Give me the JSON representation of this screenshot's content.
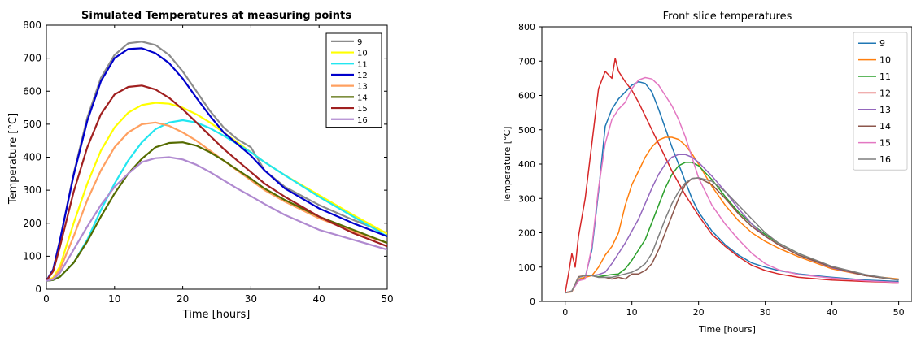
{
  "chart_data": [
    {
      "type": "line",
      "title": "Simulated Temperatures at measuring points",
      "xlabel": "Time [hours]",
      "ylabel": "Temperature [°C]",
      "xlim": [
        0,
        50
      ],
      "ylim": [
        0,
        800
      ],
      "xticks": [
        0,
        10,
        20,
        30,
        40,
        50
      ],
      "yticks": [
        0,
        100,
        200,
        300,
        400,
        500,
        600,
        700,
        800
      ],
      "grid": false,
      "legend_position": "top-right",
      "series": [
        {
          "name": "9",
          "color": "#8c8c8c",
          "x": [
            0,
            1,
            2,
            4,
            6,
            8,
            10,
            12,
            14,
            16,
            18,
            20,
            22,
            24,
            26,
            28,
            30,
            32,
            35,
            40,
            45,
            50
          ],
          "y": [
            25,
            60,
            150,
            350,
            520,
            640,
            710,
            745,
            750,
            740,
            710,
            660,
            600,
            540,
            490,
            455,
            430,
            360,
            310,
            255,
            210,
            170
          ]
        },
        {
          "name": "10",
          "color": "#ffff00",
          "x": [
            0,
            1,
            2,
            4,
            6,
            8,
            10,
            12,
            14,
            16,
            18,
            20,
            22,
            24,
            26,
            28,
            30,
            32,
            35,
            40,
            45,
            50
          ],
          "y": [
            25,
            35,
            70,
            200,
            320,
            420,
            490,
            535,
            558,
            565,
            562,
            550,
            530,
            505,
            475,
            445,
            415,
            385,
            345,
            285,
            225,
            168
          ]
        },
        {
          "name": "11",
          "color": "#22e6f0",
          "x": [
            0,
            1,
            2,
            4,
            6,
            8,
            10,
            12,
            14,
            16,
            18,
            20,
            22,
            24,
            26,
            28,
            30,
            32,
            35,
            40,
            45,
            50
          ],
          "y": [
            25,
            28,
            38,
            80,
            150,
            240,
            320,
            390,
            445,
            485,
            505,
            512,
            505,
            488,
            465,
            440,
            415,
            385,
            345,
            280,
            220,
            160
          ]
        },
        {
          "name": "12",
          "color": "#0000cc",
          "x": [
            0,
            1,
            2,
            4,
            6,
            8,
            10,
            12,
            14,
            16,
            18,
            20,
            22,
            24,
            26,
            28,
            30,
            32,
            35,
            40,
            45,
            50
          ],
          "y": [
            25,
            60,
            150,
            345,
            510,
            630,
            700,
            728,
            730,
            715,
            685,
            638,
            580,
            525,
            475,
            440,
            405,
            360,
            305,
            245,
            200,
            160
          ]
        },
        {
          "name": "13",
          "color": "#ffa060",
          "x": [
            0,
            1,
            2,
            4,
            6,
            8,
            10,
            12,
            14,
            16,
            18,
            20,
            22,
            24,
            26,
            28,
            30,
            32,
            35,
            40,
            45,
            50
          ],
          "y": [
            25,
            32,
            60,
            160,
            270,
            360,
            430,
            475,
            500,
            505,
            495,
            475,
            450,
            420,
            390,
            360,
            330,
            300,
            265,
            215,
            175,
            140
          ]
        },
        {
          "name": "14",
          "color": "#556b00",
          "x": [
            0,
            1,
            2,
            4,
            6,
            8,
            10,
            12,
            14,
            16,
            18,
            20,
            22,
            24,
            26,
            28,
            30,
            32,
            35,
            40,
            45,
            50
          ],
          "y": [
            25,
            28,
            38,
            80,
            145,
            220,
            290,
            350,
            395,
            430,
            443,
            445,
            435,
            415,
            390,
            362,
            335,
            305,
            270,
            220,
            180,
            140
          ]
        },
        {
          "name": "15",
          "color": "#a02020",
          "x": [
            0,
            1,
            2,
            4,
            6,
            8,
            10,
            12,
            14,
            16,
            18,
            20,
            22,
            24,
            26,
            28,
            30,
            32,
            35,
            40,
            45,
            50
          ],
          "y": [
            25,
            55,
            130,
            295,
            430,
            530,
            590,
            613,
            617,
            605,
            580,
            545,
            505,
            465,
            425,
            390,
            355,
            320,
            280,
            220,
            170,
            130
          ]
        },
        {
          "name": "16",
          "color": "#b08ad0",
          "x": [
            0,
            1,
            2,
            4,
            6,
            8,
            10,
            12,
            14,
            16,
            18,
            20,
            22,
            24,
            26,
            28,
            30,
            32,
            35,
            40,
            45,
            50
          ],
          "y": [
            25,
            30,
            50,
            120,
            190,
            255,
            310,
            350,
            385,
            397,
            400,
            393,
            377,
            355,
            330,
            305,
            282,
            258,
            225,
            180,
            150,
            120
          ]
        }
      ]
    },
    {
      "type": "line",
      "title": "Front slice temperatures",
      "xlabel": "Time [hours]",
      "ylabel": "Temperature [°C]",
      "xlim": [
        -3.5,
        52
      ],
      "ylim": [
        0,
        800
      ],
      "xticks": [
        0,
        10,
        20,
        30,
        40,
        50
      ],
      "yticks": [
        0,
        100,
        200,
        300,
        400,
        500,
        600,
        700,
        800
      ],
      "grid": false,
      "legend_position": "top-right",
      "series": [
        {
          "name": "9",
          "color": "#1f77b4",
          "x": [
            0,
            1,
            2,
            3,
            4,
            5,
            6,
            7,
            8,
            9,
            10,
            11,
            12,
            13,
            14,
            15,
            16,
            17,
            18,
            19,
            20,
            22,
            24,
            26,
            28,
            30,
            32,
            35,
            40,
            45,
            50
          ],
          "y": [
            25,
            30,
            60,
            70,
            150,
            320,
            510,
            560,
            590,
            610,
            630,
            640,
            635,
            610,
            560,
            505,
            450,
            400,
            350,
            300,
            260,
            205,
            165,
            135,
            112,
            100,
            90,
            80,
            70,
            62,
            58
          ]
        },
        {
          "name": "10",
          "color": "#ff7f0e",
          "x": [
            0,
            1,
            2,
            3,
            4,
            5,
            6,
            7,
            8,
            9,
            10,
            11,
            12,
            13,
            14,
            15,
            16,
            17,
            18,
            19,
            20,
            22,
            24,
            26,
            28,
            30,
            32,
            35,
            40,
            45,
            50
          ],
          "y": [
            25,
            28,
            65,
            70,
            75,
            100,
            135,
            160,
            200,
            280,
            340,
            380,
            420,
            450,
            470,
            478,
            478,
            472,
            455,
            430,
            400,
            335,
            280,
            235,
            200,
            175,
            155,
            130,
            95,
            75,
            65
          ]
        },
        {
          "name": "11",
          "color": "#2ca02c",
          "x": [
            0,
            1,
            2,
            3,
            4,
            5,
            6,
            7,
            8,
            9,
            10,
            11,
            12,
            13,
            14,
            15,
            16,
            17,
            18,
            19,
            20,
            22,
            24,
            26,
            28,
            30,
            32,
            35,
            40,
            45,
            50
          ],
          "y": [
            25,
            30,
            70,
            75,
            75,
            72,
            75,
            78,
            80,
            95,
            120,
            150,
            180,
            230,
            280,
            330,
            370,
            395,
            405,
            405,
            395,
            355,
            305,
            260,
            225,
            195,
            170,
            140,
            100,
            75,
            63
          ]
        },
        {
          "name": "12",
          "color": "#d62728",
          "x": [
            0,
            0.5,
            1,
            1.5,
            2,
            3,
            4,
            5,
            6,
            7,
            7.5,
            8,
            9,
            10,
            11,
            12,
            13,
            14,
            15,
            16,
            17,
            18,
            19,
            20,
            22,
            24,
            26,
            28,
            30,
            32,
            35,
            40,
            45,
            50
          ],
          "y": [
            25,
            80,
            140,
            100,
            190,
            300,
            460,
            620,
            670,
            650,
            708,
            670,
            640,
            615,
            580,
            540,
            500,
            460,
            420,
            380,
            345,
            310,
            280,
            250,
            195,
            160,
            130,
            105,
            90,
            80,
            70,
            62,
            58,
            55
          ]
        },
        {
          "name": "13",
          "color": "#9467bd",
          "x": [
            0,
            1,
            2,
            3,
            4,
            5,
            6,
            7,
            8,
            9,
            10,
            11,
            12,
            13,
            14,
            15,
            16,
            17,
            18,
            19,
            20,
            22,
            24,
            26,
            28,
            30,
            32,
            35,
            40,
            45,
            50
          ],
          "y": [
            25,
            30,
            70,
            75,
            75,
            78,
            85,
            110,
            140,
            170,
            205,
            240,
            285,
            330,
            370,
            400,
            420,
            428,
            428,
            420,
            405,
            365,
            320,
            270,
            225,
            190,
            165,
            135,
            98,
            75,
            63
          ]
        },
        {
          "name": "14",
          "color": "#8c564b",
          "x": [
            0,
            1,
            2,
            3,
            4,
            5,
            6,
            7,
            8,
            9,
            10,
            11,
            12,
            13,
            14,
            15,
            16,
            17,
            18,
            19,
            20,
            22,
            24,
            26,
            28,
            30,
            32,
            35,
            40,
            45,
            50
          ],
          "y": [
            25,
            30,
            72,
            75,
            75,
            70,
            70,
            65,
            70,
            65,
            80,
            80,
            90,
            110,
            150,
            200,
            250,
            300,
            340,
            358,
            360,
            340,
            300,
            255,
            218,
            190,
            165,
            135,
            100,
            75,
            62
          ]
        },
        {
          "name": "15",
          "color": "#e377c2",
          "x": [
            0,
            1,
            2,
            3,
            4,
            5,
            6,
            7,
            8,
            9,
            10,
            11,
            12,
            13,
            14,
            15,
            16,
            17,
            18,
            19,
            20,
            22,
            24,
            26,
            28,
            30,
            32,
            35,
            40,
            45,
            50
          ],
          "y": [
            25,
            30,
            60,
            65,
            160,
            330,
            460,
            530,
            560,
            580,
            620,
            645,
            652,
            648,
            630,
            600,
            570,
            530,
            480,
            420,
            360,
            280,
            225,
            180,
            140,
            110,
            92,
            78,
            68,
            60,
            55
          ]
        },
        {
          "name": "16",
          "color": "#7f7f7f",
          "x": [
            0,
            1,
            2,
            3,
            4,
            5,
            6,
            7,
            8,
            9,
            10,
            11,
            12,
            13,
            14,
            15,
            16,
            17,
            18,
            19,
            20,
            22,
            24,
            26,
            28,
            30,
            32,
            35,
            40,
            45,
            50
          ],
          "y": [
            25,
            30,
            70,
            75,
            75,
            70,
            70,
            70,
            75,
            80,
            85,
            95,
            110,
            140,
            190,
            240,
            285,
            320,
            345,
            358,
            360,
            350,
            320,
            280,
            240,
            200,
            170,
            140,
            102,
            78,
            62
          ]
        }
      ]
    }
  ]
}
